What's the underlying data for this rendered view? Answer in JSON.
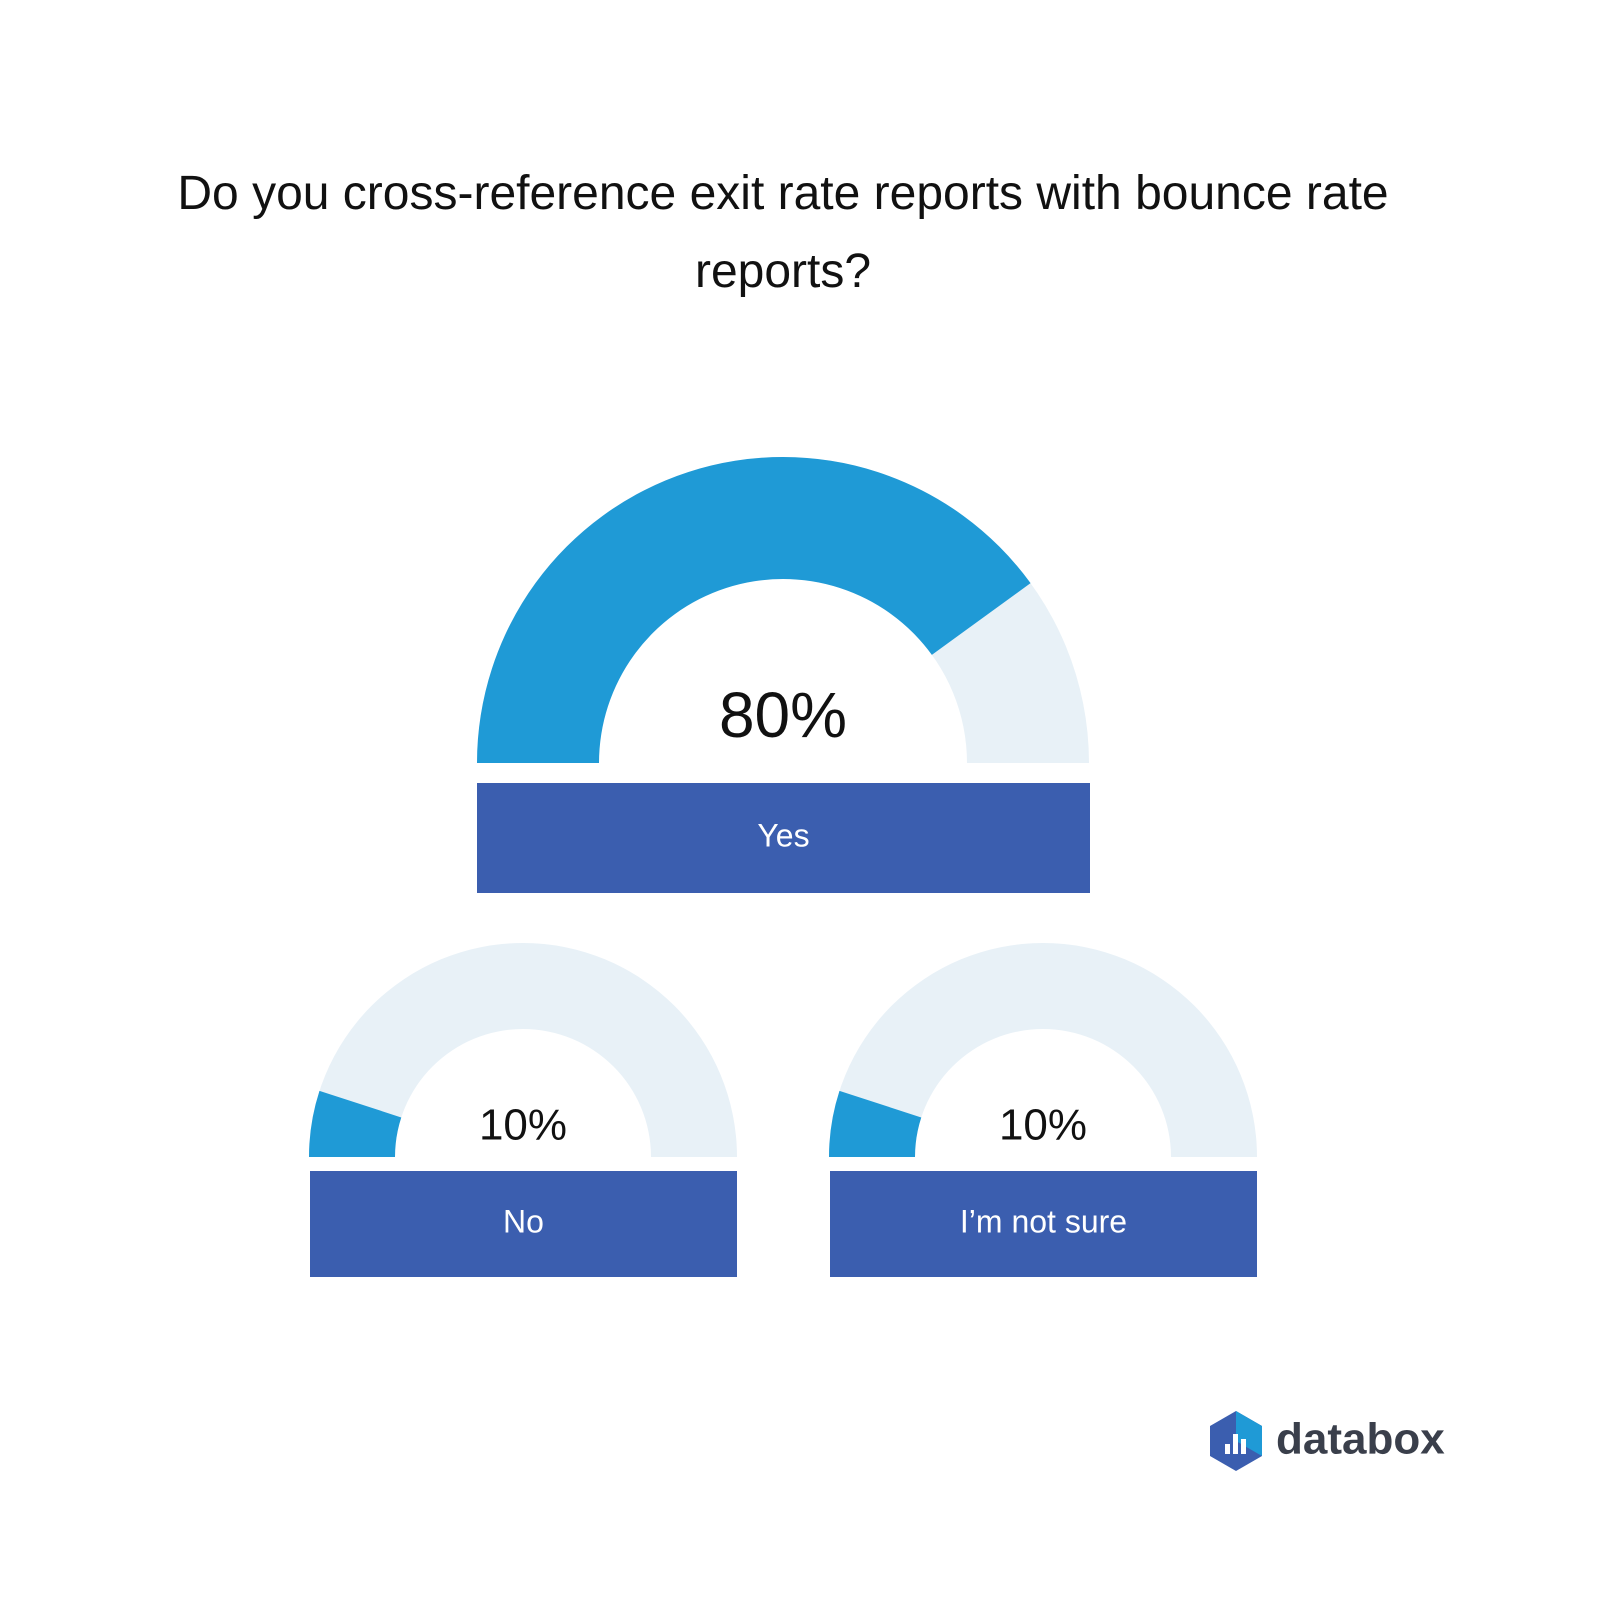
{
  "chart_data": {
    "type": "gauge",
    "title": "Do you cross-reference exit rate reports with bounce rate reports?",
    "categories": [
      "Yes",
      "No",
      "I’m not sure"
    ],
    "values": [
      80,
      10,
      10
    ],
    "value_labels": [
      "80%",
      "10%",
      "10%"
    ],
    "ylim": [
      0,
      100
    ],
    "color": "#1f9ad6",
    "track_color": "#e8f1f7",
    "label_color": "#3b5eaf"
  },
  "brand": "databox"
}
